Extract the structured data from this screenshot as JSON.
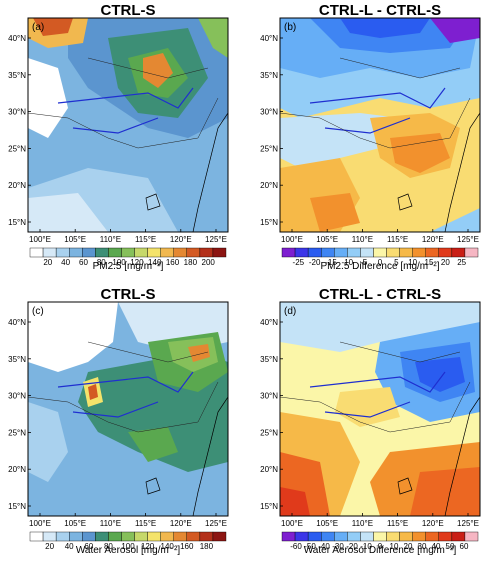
{
  "axes": {
    "lon_ticks": [
      "100°E",
      "105°E",
      "110°E",
      "115°E",
      "120°E",
      "125°E"
    ],
    "lat_ticks": [
      "40°N",
      "35°N",
      "30°N",
      "25°N",
      "20°N",
      "15°N"
    ]
  },
  "panels": [
    {
      "label": "(a)",
      "title": "CTRL-S",
      "colorbar_label": "PM2.5 [mg/m⁻²]",
      "colorbar_ticks": [
        "20",
        "40",
        "60",
        "80",
        "100",
        "120",
        "140",
        "160",
        "180",
        "200"
      ],
      "colorbar_colors": [
        "#ffffff",
        "#d6e9f7",
        "#a9d1ee",
        "#7cb4e0",
        "#5b95cf",
        "#3d8f76",
        "#5aa84f",
        "#86c05a",
        "#c6d86a",
        "#f4e36b",
        "#f1b84f",
        "#e48832",
        "#d35a23",
        "#b3301a",
        "#8c1512"
      ]
    },
    {
      "label": "(b)",
      "title": "CTRL-L - CTRL-S",
      "colorbar_label": "PM2.5 Difference [mg/m⁻²]",
      "colorbar_ticks": [
        "-25",
        "-20",
        "-15",
        "-10",
        "-5",
        "0",
        "5",
        "10",
        "15",
        "20",
        "25"
      ],
      "colorbar_colors": [
        "#7e1fd0",
        "#3b36e8",
        "#2a5cf0",
        "#3f85f3",
        "#66aef6",
        "#93cdf7",
        "#c4e3f7",
        "#fbf6a8",
        "#f9dc72",
        "#f6b948",
        "#f2912d",
        "#ec6722",
        "#e03a1b",
        "#c91f16",
        "#f6b6c3"
      ]
    },
    {
      "label": "(c)",
      "title": "CTRL-S",
      "colorbar_label": "Water Aerosol [mg/m⁻²]",
      "colorbar_ticks": [
        "20",
        "40",
        "60",
        "80",
        "100",
        "120",
        "140",
        "160",
        "180"
      ],
      "colorbar_colors": [
        "#ffffff",
        "#d6e9f7",
        "#a9d1ee",
        "#7cb4e0",
        "#5b95cf",
        "#3d8f76",
        "#5aa84f",
        "#86c05a",
        "#c6d86a",
        "#f4e36b",
        "#f1b84f",
        "#e48832",
        "#d35a23",
        "#b3301a",
        "#8c1512"
      ]
    },
    {
      "label": "(d)",
      "title": "CTRL-L - CTRL-S",
      "colorbar_label": "Water Aerosol Difference [mg/m⁻²]",
      "colorbar_ticks": [
        "-60",
        "-50",
        "-40",
        "-30",
        "-20",
        "-10",
        "0",
        "10",
        "20",
        "30",
        "40",
        "50",
        "60"
      ],
      "colorbar_colors": [
        "#7e1fd0",
        "#3b36e8",
        "#2a5cf0",
        "#3f85f3",
        "#66aef6",
        "#93cdf7",
        "#c4e3f7",
        "#fbf6a8",
        "#f9dc72",
        "#f6b948",
        "#f2912d",
        "#ec6722",
        "#e03a1b",
        "#c91f16",
        "#f6b6c3"
      ]
    }
  ]
}
